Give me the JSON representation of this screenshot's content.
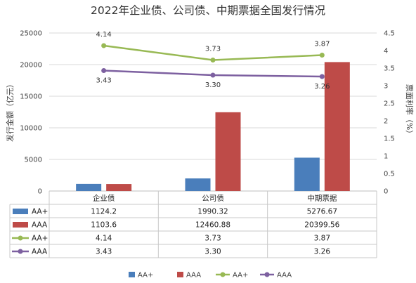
{
  "chart_data": {
    "type": "bar",
    "title": "2022年企业债、公司债、中期票据全国发行情况",
    "categories": [
      "企业债",
      "公司债",
      "中期票据"
    ],
    "ylabel": "发行金额（亿元）",
    "y2label": "票面利率（%）",
    "ylim": [
      0,
      25000
    ],
    "yticks": [
      "0",
      "5000",
      "10000",
      "15000",
      "20000",
      "25000"
    ],
    "y2lim": [
      0,
      4.5
    ],
    "y2ticks": [
      "0",
      "0.5",
      "1",
      "1.5",
      "2",
      "2.5",
      "3",
      "3.5",
      "4",
      "4.5"
    ],
    "grid": true,
    "legend_position": "bottom",
    "series": [
      {
        "name": "AA+",
        "kind": "bar",
        "axis": "left",
        "color": "#4a7ebb",
        "values": [
          1124.2,
          1990.32,
          5276.67
        ],
        "labels": [
          "1124.2",
          "1990.32",
          "5276.67"
        ]
      },
      {
        "name": "AAA",
        "kind": "bar",
        "axis": "left",
        "color": "#be4b48",
        "values": [
          1103.6,
          12460.88,
          20399.56
        ],
        "labels": [
          "1103.6",
          "12460.88",
          "20399.56"
        ]
      },
      {
        "name": "AA+",
        "kind": "line",
        "axis": "right",
        "color": "#98b954",
        "values": [
          4.14,
          3.73,
          3.87
        ],
        "labels": [
          "4.14",
          "3.73",
          "3.87"
        ]
      },
      {
        "name": "AAA",
        "kind": "line",
        "axis": "right",
        "color": "#7d60a0",
        "values": [
          3.43,
          3.3,
          3.26
        ],
        "labels": [
          "3.43",
          "3.30",
          "3.26"
        ]
      }
    ]
  }
}
